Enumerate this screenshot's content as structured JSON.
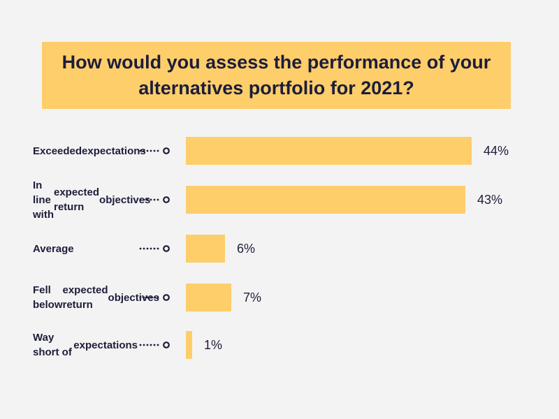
{
  "title": "How would you assess the performance of your alternatives portfolio for 2021?",
  "colors": {
    "bar": "#fece6a",
    "text": "#1c1d3a",
    "background": "#f3f3f3"
  },
  "chart_data": {
    "type": "bar",
    "orientation": "horizontal",
    "title": "How would you assess the performance of your alternatives portfolio for 2021?",
    "categories": [
      "Exceeded expectations",
      "In line with expected return objectives",
      "Average",
      "Fell below expected return objectives",
      "Way short of expectations"
    ],
    "values": [
      44,
      43,
      6,
      7,
      1
    ],
    "value_labels": [
      "44%",
      "43%",
      "6%",
      "7%",
      "1%"
    ],
    "unit": "%",
    "xlim": [
      0,
      44
    ],
    "grid": false,
    "legend": "none"
  }
}
